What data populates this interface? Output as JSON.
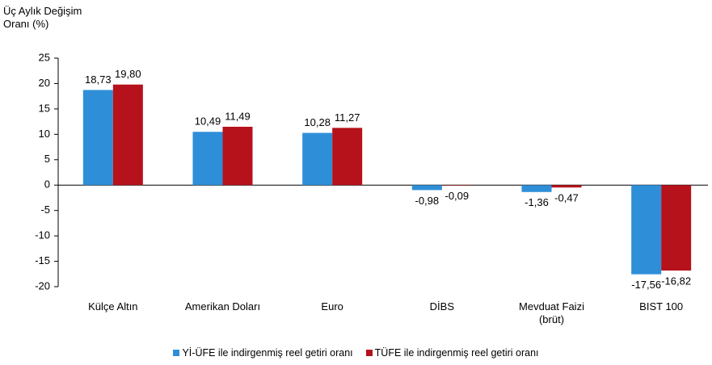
{
  "chart_data": {
    "type": "bar",
    "ylabel": "Üç Aylık Değişim Oranı (%)",
    "categories": [
      "Külçe Altın",
      "Amerikan Doları",
      "Euro",
      "DİBS",
      "Mevduat Faizi (brüt)",
      "BIST 100"
    ],
    "series": [
      {
        "name": "Yİ-ÜFE ile indirgenmiş reel getiri oranı",
        "color": "#2e8fd8",
        "values": [
          18.73,
          10.49,
          10.28,
          -0.98,
          -1.36,
          -17.56
        ],
        "value_labels": [
          "18,73",
          "10,49",
          "10,28",
          "-0,98",
          "-1,36",
          "-17,56"
        ]
      },
      {
        "name": "TÜFE ile indirgenmiş reel getiri oranı",
        "color": "#b5121b",
        "values": [
          19.8,
          11.49,
          11.27,
          -0.09,
          -0.47,
          -16.82
        ],
        "value_labels": [
          "19,80",
          "11,49",
          "11,27",
          "-0,09",
          "-0,47",
          "-16,82"
        ]
      }
    ],
    "ylim": [
      -20,
      25
    ],
    "yticks": [
      -20,
      -15,
      -10,
      -5,
      0,
      5,
      10,
      15,
      20,
      25
    ],
    "grid": false,
    "legend": "bottom"
  }
}
